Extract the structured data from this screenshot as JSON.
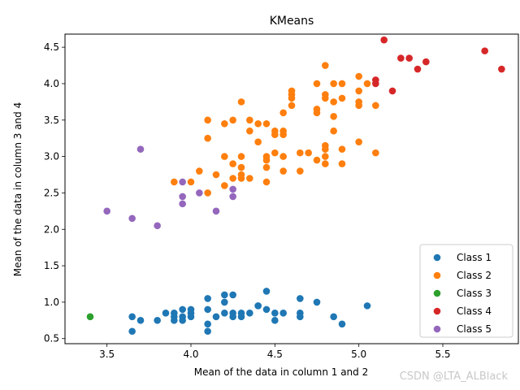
{
  "chart_data": {
    "type": "scatter",
    "title": "KMeans",
    "xlabel": "Mean of the data in column 1 and 2",
    "ylabel": "Mean of the data in column 3 and 4",
    "xlim": [
      3.25,
      5.95
    ],
    "ylim": [
      0.43,
      4.68
    ],
    "xticks": [
      3.5,
      4.0,
      4.5,
      5.0,
      5.5
    ],
    "yticks": [
      0.5,
      1.0,
      1.5,
      2.0,
      2.5,
      3.0,
      3.5,
      4.0,
      4.5
    ],
    "legend_location": "lower-right",
    "series": [
      {
        "name": "Class 1",
        "color": "#1f77b4",
        "points": [
          [
            3.65,
            0.8
          ],
          [
            3.65,
            0.6
          ],
          [
            3.7,
            0.75
          ],
          [
            3.8,
            0.75
          ],
          [
            3.85,
            0.85
          ],
          [
            3.9,
            0.85
          ],
          [
            3.9,
            0.8
          ],
          [
            3.9,
            0.75
          ],
          [
            3.95,
            0.9
          ],
          [
            3.95,
            0.8
          ],
          [
            3.95,
            0.75
          ],
          [
            4.0,
            0.9
          ],
          [
            4.0,
            0.85
          ],
          [
            4.0,
            0.8
          ],
          [
            4.1,
            1.05
          ],
          [
            4.1,
            0.9
          ],
          [
            4.1,
            0.7
          ],
          [
            4.1,
            0.6
          ],
          [
            4.15,
            0.8
          ],
          [
            4.2,
            1.1
          ],
          [
            4.2,
            1.0
          ],
          [
            4.2,
            0.85
          ],
          [
            4.25,
            1.1
          ],
          [
            4.25,
            0.85
          ],
          [
            4.25,
            0.8
          ],
          [
            4.3,
            0.85
          ],
          [
            4.3,
            0.8
          ],
          [
            4.35,
            0.85
          ],
          [
            4.4,
            0.95
          ],
          [
            4.4,
            0.95
          ],
          [
            4.45,
            1.15
          ],
          [
            4.45,
            0.9
          ],
          [
            4.5,
            0.85
          ],
          [
            4.5,
            0.75
          ],
          [
            4.55,
            0.85
          ],
          [
            4.65,
            1.05
          ],
          [
            4.65,
            0.85
          ],
          [
            4.65,
            0.8
          ],
          [
            4.75,
            1.0
          ],
          [
            4.85,
            0.8
          ],
          [
            4.9,
            0.7
          ],
          [
            5.05,
            0.95
          ]
        ]
      },
      {
        "name": "Class 2",
        "color": "#ff7f0e",
        "points": [
          [
            3.9,
            2.65
          ],
          [
            4.0,
            2.65
          ],
          [
            4.05,
            2.8
          ],
          [
            4.1,
            3.5
          ],
          [
            4.1,
            3.25
          ],
          [
            4.1,
            2.5
          ],
          [
            4.15,
            2.75
          ],
          [
            4.2,
            3.45
          ],
          [
            4.2,
            3.0
          ],
          [
            4.2,
            2.6
          ],
          [
            4.25,
            3.5
          ],
          [
            4.25,
            2.9
          ],
          [
            4.25,
            2.7
          ],
          [
            4.3,
            3.75
          ],
          [
            4.3,
            3.0
          ],
          [
            4.3,
            2.85
          ],
          [
            4.3,
            2.75
          ],
          [
            4.3,
            2.7
          ],
          [
            4.35,
            3.5
          ],
          [
            4.35,
            3.35
          ],
          [
            4.35,
            2.7
          ],
          [
            4.4,
            3.45
          ],
          [
            4.4,
            3.2
          ],
          [
            4.45,
            3.45
          ],
          [
            4.45,
            3.0
          ],
          [
            4.45,
            2.95
          ],
          [
            4.45,
            2.85
          ],
          [
            4.45,
            2.65
          ],
          [
            4.5,
            3.35
          ],
          [
            4.5,
            3.3
          ],
          [
            4.5,
            3.05
          ],
          [
            4.55,
            3.6
          ],
          [
            4.55,
            3.35
          ],
          [
            4.55,
            3.3
          ],
          [
            4.55,
            3.0
          ],
          [
            4.55,
            2.8
          ],
          [
            4.6,
            3.9
          ],
          [
            4.6,
            3.85
          ],
          [
            4.6,
            3.8
          ],
          [
            4.6,
            3.7
          ],
          [
            4.65,
            3.05
          ],
          [
            4.65,
            2.8
          ],
          [
            4.7,
            3.05
          ],
          [
            4.75,
            4.0
          ],
          [
            4.75,
            3.65
          ],
          [
            4.75,
            3.6
          ],
          [
            4.75,
            2.95
          ],
          [
            4.8,
            4.25
          ],
          [
            4.8,
            3.85
          ],
          [
            4.8,
            3.8
          ],
          [
            4.8,
            3.15
          ],
          [
            4.8,
            3.1
          ],
          [
            4.8,
            3.0
          ],
          [
            4.8,
            2.9
          ],
          [
            4.85,
            4.0
          ],
          [
            4.85,
            3.75
          ],
          [
            4.85,
            3.55
          ],
          [
            4.85,
            3.35
          ],
          [
            4.9,
            4.0
          ],
          [
            4.9,
            3.8
          ],
          [
            4.9,
            3.1
          ],
          [
            4.9,
            2.9
          ],
          [
            5.0,
            4.1
          ],
          [
            5.0,
            3.9
          ],
          [
            5.0,
            3.75
          ],
          [
            5.0,
            3.7
          ],
          [
            5.0,
            3.2
          ],
          [
            5.05,
            4.0
          ],
          [
            5.1,
            3.7
          ],
          [
            5.1,
            3.05
          ]
        ]
      },
      {
        "name": "Class 3",
        "color": "#2ca02c",
        "points": [
          [
            3.4,
            0.8
          ]
        ]
      },
      {
        "name": "Class 4",
        "color": "#d62728",
        "points": [
          [
            5.1,
            4.05
          ],
          [
            5.1,
            4.0
          ],
          [
            5.15,
            4.6
          ],
          [
            5.2,
            3.9
          ],
          [
            5.25,
            4.35
          ],
          [
            5.3,
            4.35
          ],
          [
            5.35,
            4.2
          ],
          [
            5.4,
            4.3
          ],
          [
            5.75,
            4.45
          ],
          [
            5.85,
            4.2
          ]
        ]
      },
      {
        "name": "Class 5",
        "color": "#9467bd",
        "points": [
          [
            3.5,
            2.25
          ],
          [
            3.65,
            2.15
          ],
          [
            3.7,
            3.1
          ],
          [
            3.8,
            2.05
          ],
          [
            3.95,
            2.65
          ],
          [
            3.95,
            2.45
          ],
          [
            3.95,
            2.35
          ],
          [
            4.05,
            2.5
          ],
          [
            4.15,
            2.25
          ],
          [
            4.25,
            2.55
          ],
          [
            4.25,
            2.45
          ]
        ]
      }
    ]
  },
  "watermark": "CSDN @LTA_ALBlack"
}
